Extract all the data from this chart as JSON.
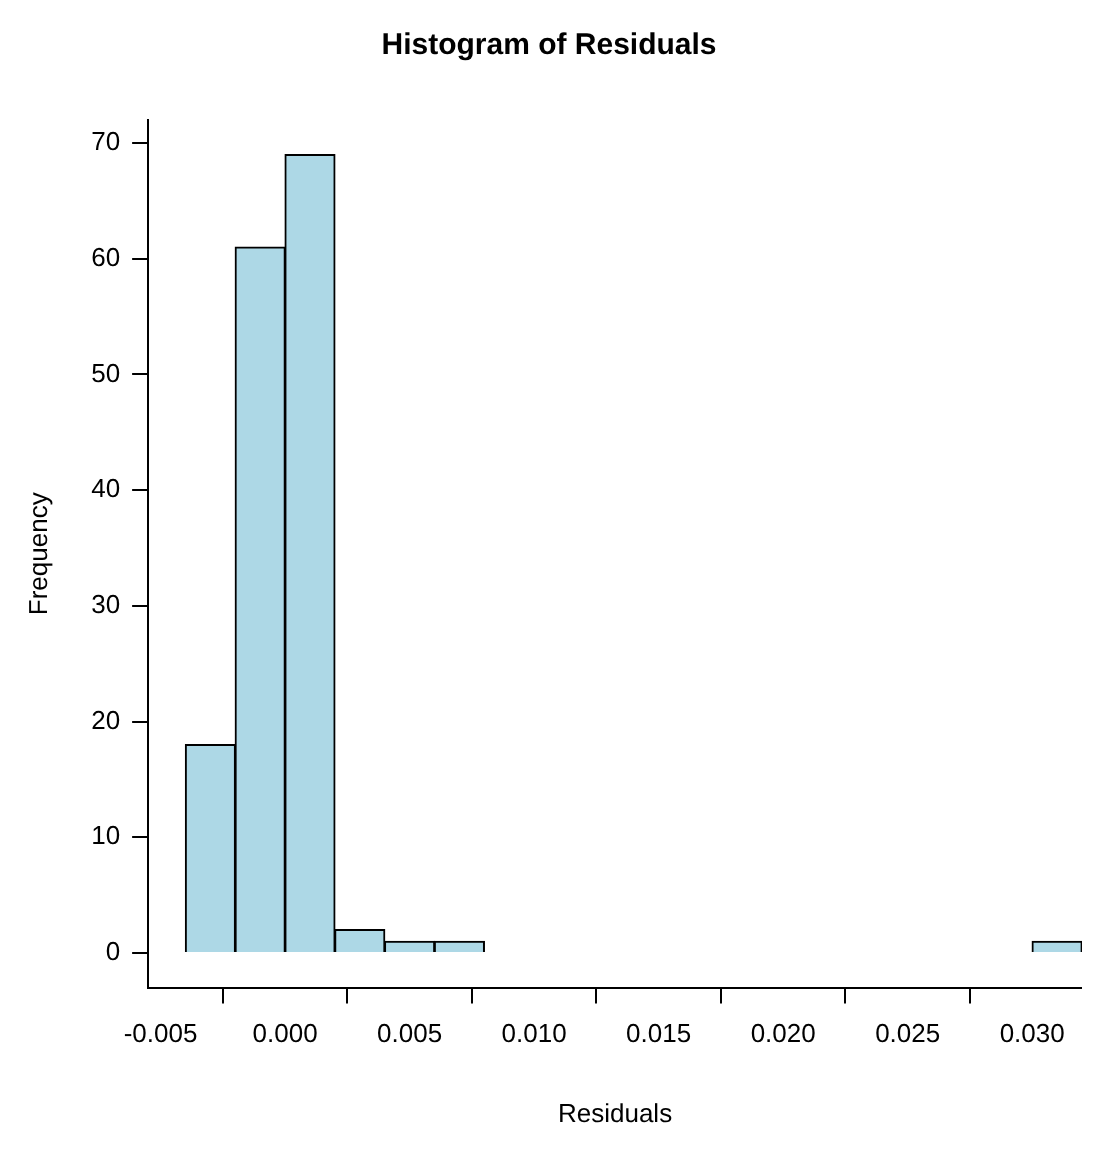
{
  "chart_data": {
    "type": "histogram",
    "title": "Histogram of Residuals",
    "xlabel": "Residuals",
    "ylabel": "Frequency",
    "bins": [
      -0.004,
      -0.002,
      0,
      0.002,
      0.004,
      0.006,
      0.008,
      0.01,
      0.012,
      0.014,
      0.016,
      0.018,
      0.02,
      0.022,
      0.024,
      0.026,
      0.028,
      0.03,
      0.032
    ],
    "values": [
      18,
      61,
      69,
      2,
      1,
      1,
      0,
      0,
      0,
      0,
      0,
      0,
      0,
      0,
      0,
      0,
      0,
      1
    ],
    "color": "#add8e6",
    "xlim": [
      -0.0055,
      0.032
    ],
    "xticks": [
      {
        "value": -0.005,
        "label": "-0.005"
      },
      {
        "value": 0,
        "label": "0.000"
      },
      {
        "value": 0.005,
        "label": "0.005"
      },
      {
        "value": 0.01,
        "label": "0.010"
      },
      {
        "value": 0.015,
        "label": "0.015"
      },
      {
        "value": 0.02,
        "label": "0.020"
      },
      {
        "value": 0.025,
        "label": "0.025"
      },
      {
        "value": 0.03,
        "label": "0.030"
      }
    ],
    "ylim": [
      -3,
      72
    ],
    "yticks": [
      0,
      10,
      20,
      30,
      40,
      50,
      60,
      70
    ],
    "grid": false,
    "legend": false
  }
}
